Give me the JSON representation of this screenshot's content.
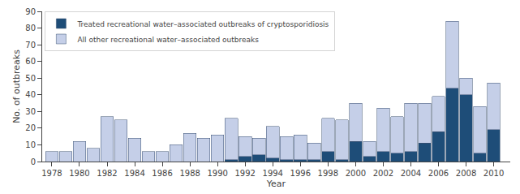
{
  "chart_data": {
    "type": "bar",
    "stacked": true,
    "x": [
      1978,
      1979,
      1980,
      1981,
      1982,
      1983,
      1984,
      1985,
      1986,
      1987,
      1988,
      1989,
      1990,
      1991,
      1992,
      1993,
      1994,
      1995,
      1996,
      1997,
      1998,
      1999,
      2000,
      2001,
      2002,
      2003,
      2004,
      2005,
      2006,
      2007,
      2008,
      2009,
      2010
    ],
    "series": [
      {
        "name": "Treated recreational water–associated outbreaks of cryptosporidiosis",
        "color": "#1e4d78",
        "values": [
          0,
          0,
          0,
          0,
          0,
          0,
          0,
          0,
          0,
          0,
          0,
          0,
          0,
          1,
          3,
          4,
          2,
          1,
          1,
          1,
          6,
          1,
          12,
          3,
          6,
          5,
          6,
          11,
          18,
          44,
          40,
          5,
          19
        ]
      },
      {
        "name": "All other recreational water–associated outbreaks",
        "color": "#c5cfe8",
        "values": [
          6,
          6,
          12,
          8,
          27,
          25,
          14,
          6,
          6,
          10,
          17,
          14,
          16,
          25,
          12,
          10,
          19,
          14,
          15,
          10,
          20,
          24,
          23,
          9,
          26,
          22,
          29,
          24,
          21,
          40,
          10,
          28,
          28
        ]
      }
    ],
    "xlabel": "Year",
    "ylabel": "No. of outbreaks",
    "xlim": [
      1977.3,
      2011.2
    ],
    "xticks": [
      1978,
      1980,
      1982,
      1984,
      1986,
      1988,
      1990,
      1992,
      1994,
      1996,
      1998,
      2000,
      2002,
      2004,
      2006,
      2008,
      2010
    ],
    "ylim": [
      0,
      90
    ],
    "yticks": [
      0,
      10,
      20,
      30,
      40,
      50,
      60,
      70,
      80,
      90
    ],
    "grid": false,
    "legend": "upper left"
  }
}
